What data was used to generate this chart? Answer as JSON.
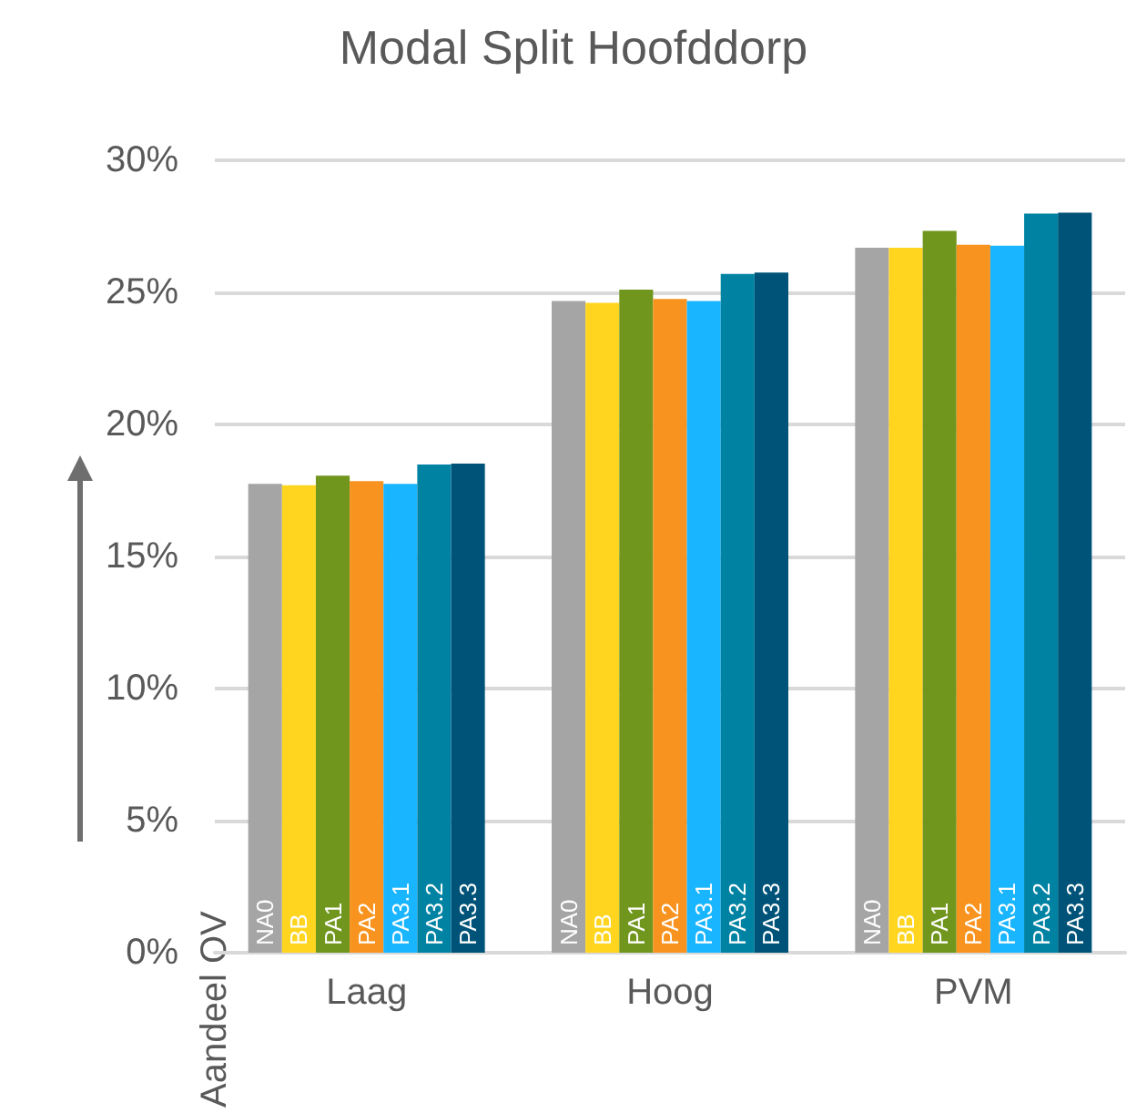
{
  "chart_data": {
    "type": "bar",
    "title": "Modal Split Hoofddorp",
    "ylabel": "Aandeel OV",
    "categories": [
      "Laag",
      "Hoog",
      "PVM"
    ],
    "series": [
      {
        "name": "NA0",
        "color": "#a5a5a5",
        "values": [
          17.75,
          24.67,
          26.69
        ]
      },
      {
        "name": "BB",
        "color": "#ffd520",
        "values": [
          17.7,
          24.6,
          26.69
        ]
      },
      {
        "name": "PA1",
        "color": "#71961e",
        "values": [
          18.06,
          25.1,
          27.33
        ]
      },
      {
        "name": "PA2",
        "color": "#f7931e",
        "values": [
          17.85,
          24.75,
          26.8
        ]
      },
      {
        "name": "PA3.1",
        "color": "#19b5fe",
        "values": [
          17.75,
          24.67,
          26.77
        ]
      },
      {
        "name": "PA3.2",
        "color": "#0083a3",
        "values": [
          18.48,
          25.7,
          27.98
        ]
      },
      {
        "name": "PA3.3",
        "color": "#005378",
        "values": [
          18.52,
          25.75,
          28.02
        ]
      }
    ],
    "ylim": [
      0,
      30
    ],
    "yticks": [
      {
        "value": 0,
        "label": "0%"
      },
      {
        "value": 5,
        "label": "5%"
      },
      {
        "value": 10,
        "label": "10%"
      },
      {
        "value": 15,
        "label": "15%"
      },
      {
        "value": 20,
        "label": "20%"
      },
      {
        "value": 25,
        "label": "25%"
      },
      {
        "value": 30,
        "label": "30%"
      }
    ],
    "grid": "y",
    "legend": false
  }
}
